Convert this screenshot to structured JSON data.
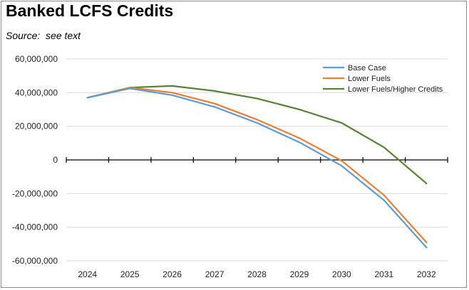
{
  "chart_data": {
    "type": "line",
    "title": "Banked LCFS Credits",
    "subtitle": "Source:  see text",
    "xlabel": "",
    "ylabel": "",
    "x": [
      2024,
      2025,
      2026,
      2027,
      2028,
      2029,
      2030,
      2031,
      2032
    ],
    "x_tick_labels": [
      "2024",
      "2025",
      "2026",
      "2027",
      "2028",
      "2029",
      "2030",
      "2031",
      "2032"
    ],
    "ylim": [
      -60000000,
      60000000
    ],
    "y_tick_values": [
      60000000,
      40000000,
      20000000,
      0,
      -20000000,
      -40000000,
      -60000000
    ],
    "y_tick_labels": [
      "60,000,000",
      "40,000,000",
      "20,000,000",
      "0",
      "-20,000,000",
      "-40,000,000",
      "-60,000,000"
    ],
    "grid": true,
    "legend_position": "top-right",
    "series": [
      {
        "name": "Base Case",
        "color": "#5b9bd5",
        "values": [
          37000000,
          42500000,
          38500000,
          31500000,
          22000000,
          10500000,
          -3500000,
          -24000000,
          -52000000
        ]
      },
      {
        "name": "Lower Fuels",
        "color": "#ed7d31",
        "values": [
          37000000,
          43000000,
          40000000,
          33500000,
          24000000,
          13000000,
          -500000,
          -21000000,
          -49000000
        ]
      },
      {
        "name": "Lower Fuels/Higher Credits",
        "color": "#548235",
        "values": [
          37000000,
          43000000,
          44000000,
          41000000,
          36500000,
          30000000,
          22000000,
          7500000,
          -14000000
        ]
      }
    ]
  }
}
